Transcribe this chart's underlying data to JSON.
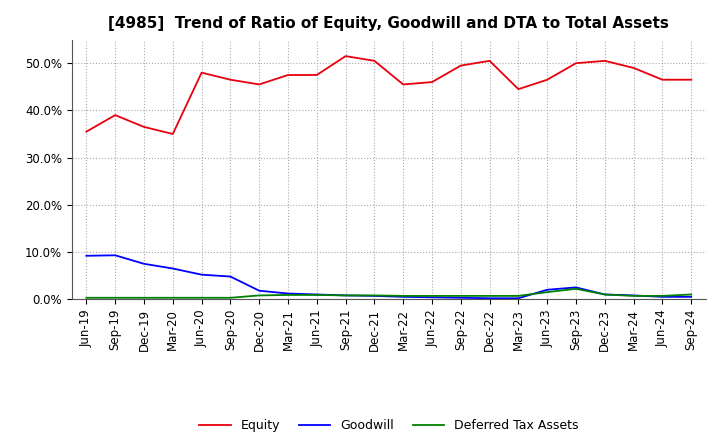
{
  "title": "[4985]  Trend of Ratio of Equity, Goodwill and DTA to Total Assets",
  "x_labels": [
    "Jun-19",
    "Sep-19",
    "Dec-19",
    "Mar-20",
    "Jun-20",
    "Sep-20",
    "Dec-20",
    "Mar-21",
    "Jun-21",
    "Sep-21",
    "Dec-21",
    "Mar-22",
    "Jun-22",
    "Sep-22",
    "Dec-22",
    "Mar-23",
    "Jun-23",
    "Sep-23",
    "Dec-23",
    "Mar-24",
    "Jun-24",
    "Sep-24"
  ],
  "equity": [
    35.5,
    39.0,
    36.5,
    35.0,
    48.0,
    46.5,
    45.5,
    47.5,
    47.5,
    51.5,
    50.5,
    45.5,
    46.0,
    49.5,
    50.5,
    44.5,
    46.5,
    50.0,
    50.5,
    49.0,
    46.5,
    46.5
  ],
  "goodwill": [
    9.2,
    9.3,
    7.5,
    6.5,
    5.2,
    4.8,
    1.8,
    1.2,
    1.0,
    0.8,
    0.7,
    0.5,
    0.4,
    0.3,
    0.2,
    0.2,
    2.0,
    2.5,
    1.0,
    0.8,
    0.5,
    0.5
  ],
  "dta": [
    0.3,
    0.3,
    0.3,
    0.3,
    0.3,
    0.3,
    0.8,
    0.9,
    0.9,
    0.8,
    0.8,
    0.7,
    0.7,
    0.7,
    0.7,
    0.7,
    1.5,
    2.2,
    1.0,
    0.7,
    0.7,
    1.0
  ],
  "equity_color": "#e8000d",
  "goodwill_color": "#0000ff",
  "dta_color": "#008000",
  "background_color": "#ffffff",
  "grid_color": "#aaaaaa",
  "ylim": [
    0,
    55
  ],
  "yticks": [
    0,
    10,
    20,
    30,
    40,
    50
  ],
  "legend_labels": [
    "Equity",
    "Goodwill",
    "Deferred Tax Assets"
  ],
  "title_fontsize": 11,
  "tick_fontsize": 8.5,
  "legend_fontsize": 9
}
